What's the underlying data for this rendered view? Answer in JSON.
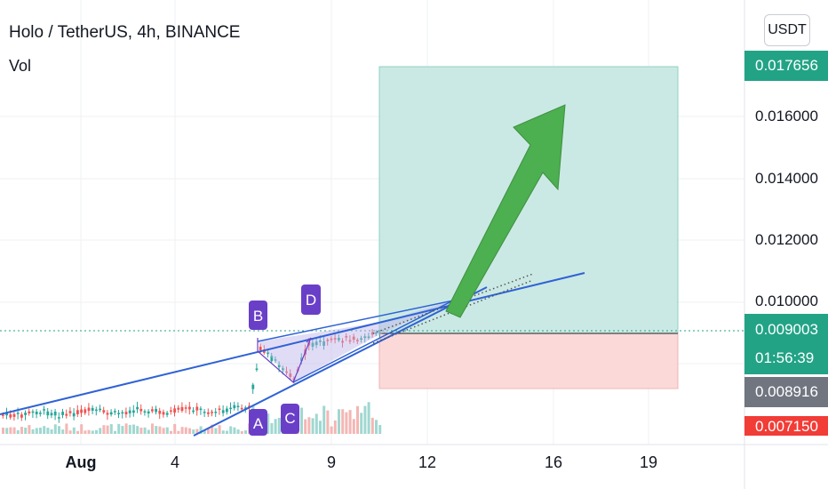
{
  "header": {
    "title": "Holo / TetherUS, 4h, BINANCE",
    "volume_label": "Vol"
  },
  "price_scale": {
    "currency": "USDT",
    "ticks": [
      "0.016000",
      "0.014000",
      "0.012000",
      "0.010000"
    ],
    "target_price": "0.017656",
    "current_price": "0.009003",
    "countdown": "01:56:39",
    "prev_close": "0.008916",
    "stop_price": "0.007150"
  },
  "time_scale": {
    "labels": [
      "Aug",
      "4",
      "9",
      "12",
      "16",
      "19"
    ]
  },
  "annotations": {
    "labels": [
      "A",
      "B",
      "C",
      "D"
    ]
  },
  "colors": {
    "profit_zone": "#cbe9e4",
    "loss_zone": "#fbd9d9",
    "trendline": "#2f62d6",
    "arrow": "#4caf50",
    "label_badge": "#6a3fc8",
    "current_price_badge": "#22a386",
    "prev_close_badge": "#707580",
    "stop_badge": "#f23c36",
    "up_candle": "#26a69a",
    "down_candle": "#ef5350"
  }
}
